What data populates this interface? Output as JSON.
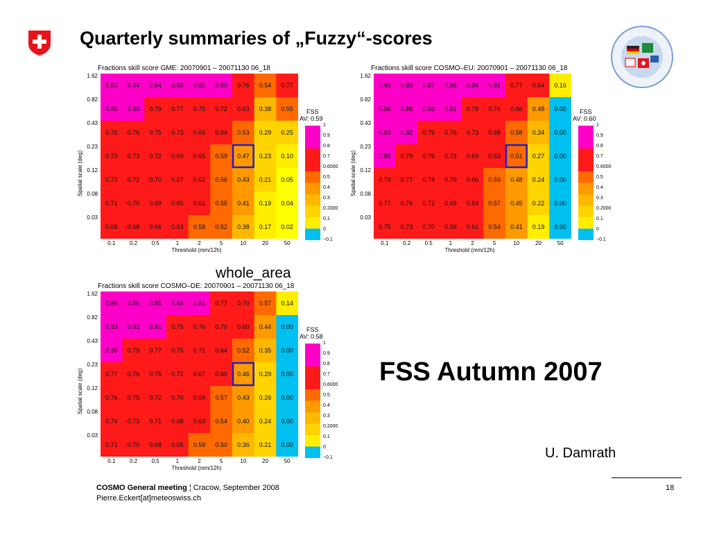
{
  "slide": {
    "title": "Quarterly summaries of „Fuzzy“-scores",
    "subtitle": "whole_area",
    "big_text": "FSS Autumn 2007",
    "author": "U. Damrath",
    "footer_bold": "COSMO General meeting",
    "footer_rest": " ¦ Cracow, September 2008",
    "footer_email": "Pierre.Eckert[at]meteoswiss.ch",
    "page_number": "18",
    "logo_icon": "swiss-shield-icon",
    "cosmo_logo_icon": "cosmo-globe-icon",
    "colors": {
      "swiss_red": "#e8141b",
      "highlight_box": "#2020c0"
    }
  },
  "chart_data": [
    {
      "type": "heatmap",
      "title": "Fractions skill score GME: 20070901 – 20071130 06_18",
      "xlabel": "Threshold (mm/12h)",
      "ylabel": "Spatial scale (deg)",
      "x": [
        "0.1",
        "0.2",
        "0.5",
        "1",
        "2",
        "5",
        "10",
        "20",
        "50"
      ],
      "y": [
        "1.62",
        "0.82",
        "0.43",
        "0.23",
        "0.12",
        "0.08",
        "0.03"
      ],
      "values": [
        [
          "0.83",
          "0.84",
          "0.84",
          "0.83",
          "0.82",
          "0.80",
          "0.76",
          "0.54",
          "0.77"
        ],
        [
          "0.80",
          "0.80",
          "0.79",
          "0.77",
          "0.75",
          "0.72",
          "0.63",
          "0.38",
          "0.55"
        ],
        [
          "0.76",
          "0.76",
          "0.75",
          "0.73",
          "0.69",
          "0.64",
          "0.53",
          "0.29",
          "0.25"
        ],
        [
          "0.73",
          "0.73",
          "0.72",
          "0.69",
          "0.65",
          "0.59",
          "0.47",
          "0.23",
          "0.10"
        ],
        [
          "0.72",
          "0.72",
          "0.70",
          "0.67",
          "0.62",
          "0.56",
          "0.43",
          "0.21",
          "0.05"
        ],
        [
          "0.71",
          "0.70",
          "0.69",
          "0.65",
          "0.61",
          "0.55",
          "0.41",
          "0.19",
          "0.04"
        ],
        [
          "0.68",
          "0.68",
          "0.66",
          "0.63",
          "0.58",
          "0.52",
          "0.38",
          "0.17",
          "0.02"
        ]
      ],
      "highlight": {
        "row": 3,
        "col": 6
      },
      "fss_label": "FSS",
      "fss_av": "AV: 0.59",
      "colorbar_labels": [
        "1",
        "0.9",
        "0.8",
        "0.7",
        "0.6000",
        "0.5",
        "0.4",
        "0.3",
        "0.2000",
        "0.1",
        "0",
        "−0.1"
      ]
    },
    {
      "type": "heatmap",
      "title": "Fractions skill score COSMO–EU: 20070901 – 20071130 06_18",
      "xlabel": "Threshold (mm/12h)",
      "ylabel": "Spatial scale (deg)",
      "x": [
        "0.1",
        "0.2",
        "0.5",
        "1",
        "2",
        "5",
        "10",
        "20",
        "50"
      ],
      "y": [
        "1.62",
        "0.82",
        "0.43",
        "0.23",
        "0.12",
        "0.08",
        "0.03"
      ],
      "values": [
        [
          "0.90",
          "0.89",
          "0.87",
          "0.86",
          "0.84",
          "0.81",
          "0.77",
          "0.64",
          "0.16"
        ],
        [
          "0.86",
          "0.85",
          "0.83",
          "0.81",
          "0.78",
          "0.74",
          "0.66",
          "0.48",
          "0.00"
        ],
        [
          "0.83",
          "0.82",
          "0.79",
          "0.76",
          "0.73",
          "0.68",
          "0.58",
          "0.34",
          "0.00"
        ],
        [
          "0.80",
          "0.79",
          "0.76",
          "0.73",
          "0.69",
          "0.63",
          "0.51",
          "0.27",
          "0.00"
        ],
        [
          "0.79",
          "0.77",
          "0.74",
          "0.70",
          "0.66",
          "0.59",
          "0.48",
          "0.24",
          "0.00"
        ],
        [
          "0.77",
          "0.76",
          "0.72",
          "0.69",
          "0.64",
          "0.57",
          "0.45",
          "0.22",
          "0.00"
        ],
        [
          "0.75",
          "0.73",
          "0.70",
          "0.66",
          "0.61",
          "0.54",
          "0.41",
          "0.19",
          "0.00"
        ]
      ],
      "highlight": {
        "row": 3,
        "col": 6
      },
      "fss_label": "FSS",
      "fss_av": "AV: 0.60",
      "colorbar_labels": [
        "1",
        "0.9",
        "0.8",
        "0.7",
        "0.6000",
        "0.5",
        "0.4",
        "0.3",
        "0.2000",
        "0.1",
        "0",
        "−0.1"
      ]
    },
    {
      "type": "heatmap",
      "title": "Fractions skill score COSMO–DE: 20070901 – 20071130 06_18",
      "xlabel": "Threshold (mm/12h)",
      "ylabel": "Spatial scale (deg)",
      "x": [
        "0.1",
        "0.2",
        "0.5",
        "1",
        "2",
        "5",
        "10",
        "20",
        "50"
      ],
      "y": [
        "1.62",
        "0.82",
        "0.43",
        "0.23",
        "0.12",
        "0.08",
        "0.03"
      ],
      "values": [
        [
          "0.86",
          "0.86",
          "0.85",
          "0.84",
          "0.81",
          "0.77",
          "0.70",
          "0.57",
          "0.14"
        ],
        [
          "0.83",
          "0.82",
          "0.81",
          "0.79",
          "0.76",
          "0.70",
          "0.60",
          "0.44",
          "0.00"
        ],
        [
          "0.80",
          "0.79",
          "0.77",
          "0.75",
          "0.71",
          "0.64",
          "0.52",
          "0.35",
          "0.00"
        ],
        [
          "0.77",
          "0.76",
          "0.75",
          "0.72",
          "0.67",
          "0.60",
          "0.46",
          "0.29",
          "0.00"
        ],
        [
          "0.76",
          "0.75",
          "0.72",
          "0.70",
          "0.64",
          "0.57",
          "0.43",
          "0.26",
          "0.00"
        ],
        [
          "0.74",
          "0.73",
          "0.71",
          "0.68",
          "0.63",
          "0.54",
          "0.40",
          "0.24",
          "0.00"
        ],
        [
          "0.71",
          "0.70",
          "0.68",
          "0.65",
          "0.59",
          "0.50",
          "0.36",
          "0.21",
          "0.00"
        ]
      ],
      "highlight": {
        "row": 3,
        "col": 6
      },
      "fss_label": "FSS",
      "fss_av": "AV: 0.58",
      "colorbar_labels": [
        "1",
        "0.9",
        "0.8",
        "0.7",
        "0.6000",
        "0.5",
        "0.4",
        "0.3",
        "0.2000",
        "0.1",
        "0",
        "−0.1"
      ]
    }
  ]
}
